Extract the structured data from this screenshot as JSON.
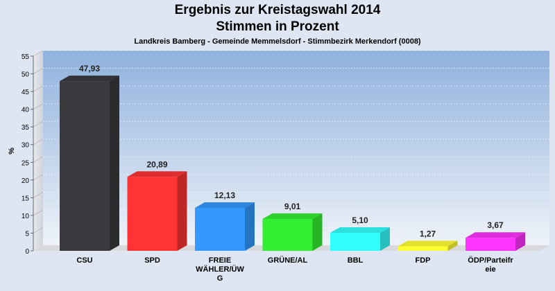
{
  "chart_data": {
    "type": "bar",
    "title": "Ergebnis zur Kreistagswahl 2014",
    "title_line2": "Stimmen in Prozent",
    "subtitle": "Landkreis Bamberg - Gemeinde Memmelsdorf - Stimmbezirk Merkendorf (0008)",
    "ylabel": "%",
    "xlabel": "",
    "ylim": [
      0,
      55
    ],
    "yticks": [
      0,
      5,
      10,
      15,
      20,
      25,
      30,
      35,
      40,
      45,
      50,
      55
    ],
    "grid": true,
    "categories": [
      "CSU",
      "SPD",
      "FREIE WÄHLER/ÜWG",
      "GRÜNE/AL",
      "BBL",
      "FDP",
      "ÖDP/Parteifreie"
    ],
    "category_label_lines": [
      [
        "CSU"
      ],
      [
        "SPD"
      ],
      [
        "FREIE",
        "WÄHLER/ÜW",
        "G"
      ],
      [
        "GRÜNE/AL"
      ],
      [
        "BBL"
      ],
      [
        "FDP"
      ],
      [
        "ÖDP/Parteifr",
        "eie"
      ]
    ],
    "values": [
      47.93,
      20.89,
      12.13,
      9.01,
      5.1,
      1.27,
      3.67
    ],
    "value_labels": [
      "47,93",
      "20,89",
      "12,13",
      "9,01",
      "5,10",
      "1,27",
      "3,67"
    ],
    "colors": [
      "#3a3a3e",
      "#ff3333",
      "#3399ff",
      "#33ee33",
      "#33ffff",
      "#ffff33",
      "#ff33ff"
    ]
  }
}
